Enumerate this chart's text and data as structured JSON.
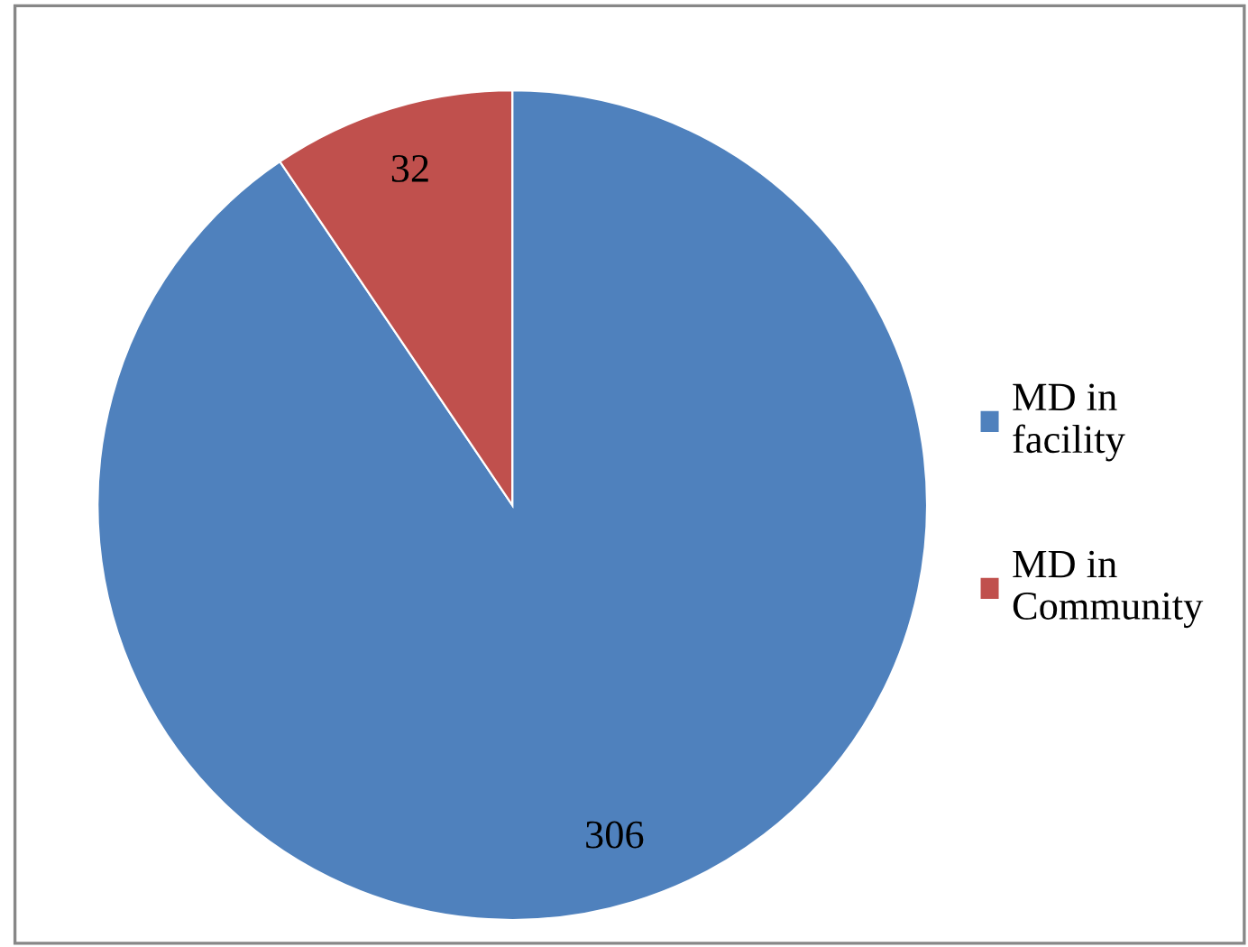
{
  "chart_data": {
    "type": "pie",
    "categories": [
      "MD in\nfacility",
      "MD in\nCommunity"
    ],
    "values": [
      306,
      32
    ],
    "colors": [
      "#4f81bd",
      "#c0504d"
    ],
    "data_labels": true,
    "legend": "right"
  }
}
